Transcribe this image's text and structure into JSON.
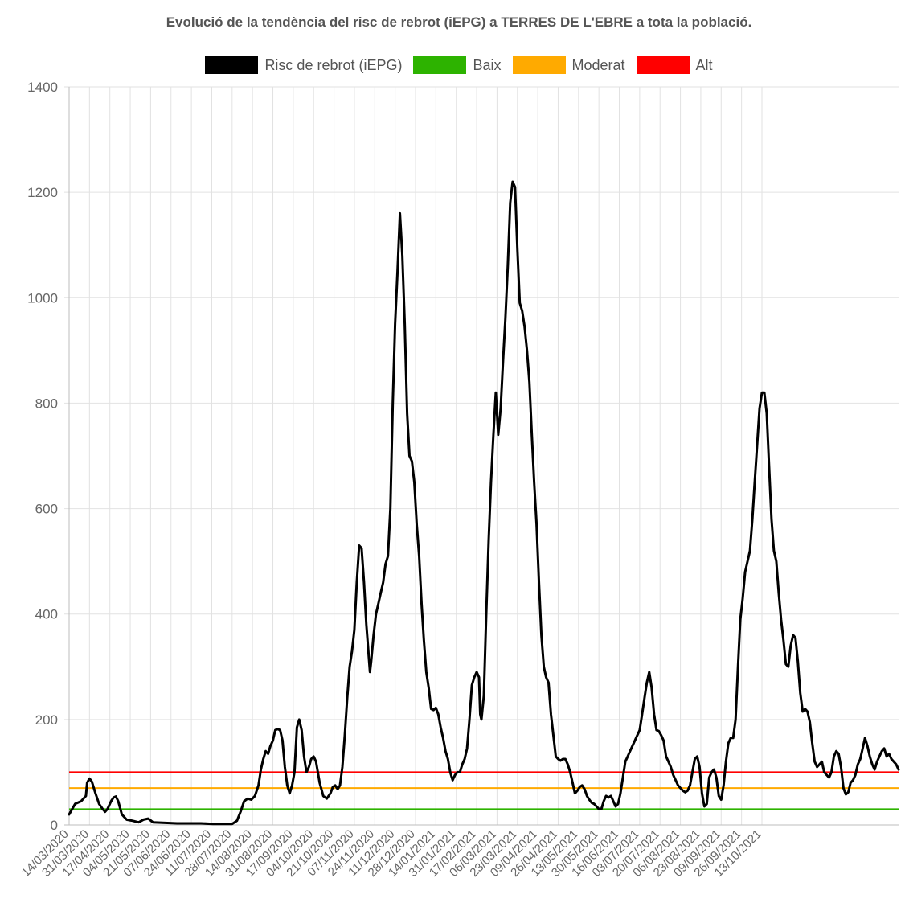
{
  "chart_data": {
    "type": "line",
    "title": "Evolució de la tendència del risc de rebrot (iEPG) a TERRES DE L'EBRE a tota la població.",
    "ylim": [
      0,
      1400
    ],
    "yticks": [
      0,
      200,
      400,
      600,
      800,
      1000,
      1200,
      1400
    ],
    "x_tick_labels": [
      "14/03/2020",
      "31/03/2020",
      "17/04/2020",
      "04/05/2020",
      "21/05/2020",
      "07/06/2020",
      "24/06/2020",
      "11/07/2020",
      "28/07/2020",
      "14/08/2020",
      "31/08/2020",
      "17/09/2020",
      "04/10/2020",
      "21/10/2020",
      "07/11/2020",
      "24/11/2020",
      "11/12/2020",
      "28/12/2020",
      "14/01/2021",
      "31/01/2021",
      "17/02/2021",
      "06/03/2021",
      "23/03/2021",
      "09/04/2021",
      "26/04/2021",
      "13/05/2021",
      "30/05/2021",
      "16/06/2021",
      "03/07/2021",
      "20/07/2021",
      "06/08/2021",
      "23/08/2021",
      "09/09/2021",
      "26/09/2021",
      "13/10/2021"
    ],
    "grid": true,
    "legend_position": "top",
    "series": [
      {
        "name": "Risc de rebrot (iEPG)",
        "color": "#000000",
        "points": [
          [
            0,
            20
          ],
          [
            5,
            40
          ],
          [
            10,
            45
          ],
          [
            14,
            55
          ],
          [
            15,
            80
          ],
          [
            17,
            88
          ],
          [
            19,
            82
          ],
          [
            22,
            60
          ],
          [
            25,
            40
          ],
          [
            28,
            30
          ],
          [
            30,
            25
          ],
          [
            32,
            30
          ],
          [
            35,
            45
          ],
          [
            37,
            52
          ],
          [
            39,
            54
          ],
          [
            41,
            45
          ],
          [
            44,
            20
          ],
          [
            48,
            10
          ],
          [
            53,
            8
          ],
          [
            58,
            5
          ],
          [
            62,
            10
          ],
          [
            66,
            12
          ],
          [
            70,
            5
          ],
          [
            80,
            4
          ],
          [
            90,
            3
          ],
          [
            110,
            3
          ],
          [
            120,
            2
          ],
          [
            130,
            2
          ],
          [
            136,
            2
          ],
          [
            140,
            8
          ],
          [
            143,
            25
          ],
          [
            146,
            45
          ],
          [
            149,
            50
          ],
          [
            152,
            48
          ],
          [
            155,
            55
          ],
          [
            158,
            75
          ],
          [
            160,
            105
          ],
          [
            162,
            125
          ],
          [
            164,
            140
          ],
          [
            166,
            135
          ],
          [
            168,
            150
          ],
          [
            170,
            160
          ],
          [
            172,
            180
          ],
          [
            174,
            182
          ],
          [
            176,
            180
          ],
          [
            178,
            160
          ],
          [
            180,
            110
          ],
          [
            182,
            75
          ],
          [
            184,
            60
          ],
          [
            186,
            75
          ],
          [
            188,
            100
          ],
          [
            190,
            185
          ],
          [
            192,
            200
          ],
          [
            194,
            180
          ],
          [
            196,
            130
          ],
          [
            198,
            100
          ],
          [
            200,
            110
          ],
          [
            202,
            125
          ],
          [
            204,
            130
          ],
          [
            206,
            120
          ],
          [
            209,
            80
          ],
          [
            212,
            55
          ],
          [
            215,
            50
          ],
          [
            218,
            60
          ],
          [
            220,
            72
          ],
          [
            222,
            75
          ],
          [
            224,
            68
          ],
          [
            226,
            75
          ],
          [
            228,
            110
          ],
          [
            230,
            170
          ],
          [
            232,
            240
          ],
          [
            234,
            300
          ],
          [
            236,
            330
          ],
          [
            238,
            370
          ],
          [
            240,
            460
          ],
          [
            242,
            530
          ],
          [
            244,
            525
          ],
          [
            246,
            460
          ],
          [
            248,
            380
          ],
          [
            250,
            320
          ],
          [
            251,
            290
          ],
          [
            252,
            310
          ],
          [
            254,
            360
          ],
          [
            256,
            400
          ],
          [
            258,
            420
          ],
          [
            260,
            440
          ],
          [
            262,
            460
          ],
          [
            264,
            495
          ],
          [
            266,
            510
          ],
          [
            268,
            600
          ],
          [
            270,
            800
          ],
          [
            272,
            950
          ],
          [
            274,
            1050
          ],
          [
            276,
            1160
          ],
          [
            278,
            1080
          ],
          [
            280,
            950
          ],
          [
            282,
            780
          ],
          [
            284,
            700
          ],
          [
            286,
            690
          ],
          [
            288,
            650
          ],
          [
            290,
            570
          ],
          [
            292,
            510
          ],
          [
            294,
            420
          ],
          [
            296,
            350
          ],
          [
            298,
            290
          ],
          [
            300,
            260
          ],
          [
            302,
            220
          ],
          [
            304,
            218
          ],
          [
            306,
            222
          ],
          [
            308,
            210
          ],
          [
            310,
            185
          ],
          [
            312,
            165
          ],
          [
            314,
            140
          ],
          [
            316,
            125
          ],
          [
            318,
            100
          ],
          [
            320,
            85
          ],
          [
            322,
            95
          ],
          [
            324,
            100
          ],
          [
            326,
            100
          ],
          [
            328,
            115
          ],
          [
            330,
            125
          ],
          [
            332,
            145
          ],
          [
            334,
            200
          ],
          [
            336,
            265
          ],
          [
            338,
            280
          ],
          [
            340,
            290
          ],
          [
            342,
            280
          ],
          [
            343,
            210
          ],
          [
            344,
            200
          ],
          [
            346,
            245
          ],
          [
            348,
            400
          ],
          [
            350,
            540
          ],
          [
            352,
            650
          ],
          [
            354,
            740
          ],
          [
            356,
            820
          ],
          [
            357,
            780
          ],
          [
            358,
            740
          ],
          [
            360,
            790
          ],
          [
            362,
            880
          ],
          [
            364,
            960
          ],
          [
            366,
            1060
          ],
          [
            368,
            1180
          ],
          [
            370,
            1220
          ],
          [
            372,
            1210
          ],
          [
            374,
            1090
          ],
          [
            376,
            990
          ],
          [
            378,
            975
          ],
          [
            380,
            945
          ],
          [
            382,
            900
          ],
          [
            384,
            840
          ],
          [
            386,
            740
          ],
          [
            388,
            650
          ],
          [
            390,
            570
          ],
          [
            392,
            460
          ],
          [
            394,
            360
          ],
          [
            396,
            300
          ],
          [
            398,
            280
          ],
          [
            400,
            270
          ],
          [
            402,
            210
          ],
          [
            404,
            170
          ],
          [
            406,
            130
          ],
          [
            408,
            125
          ],
          [
            410,
            122
          ],
          [
            412,
            125
          ],
          [
            414,
            125
          ],
          [
            416,
            115
          ],
          [
            418,
            100
          ],
          [
            420,
            80
          ],
          [
            422,
            60
          ],
          [
            424,
            65
          ],
          [
            426,
            72
          ],
          [
            428,
            75
          ],
          [
            430,
            68
          ],
          [
            432,
            55
          ],
          [
            434,
            48
          ],
          [
            436,
            42
          ],
          [
            438,
            40
          ],
          [
            440,
            35
          ],
          [
            442,
            30
          ],
          [
            444,
            30
          ],
          [
            446,
            45
          ],
          [
            448,
            55
          ],
          [
            450,
            52
          ],
          [
            452,
            55
          ],
          [
            454,
            45
          ],
          [
            456,
            35
          ],
          [
            458,
            40
          ],
          [
            460,
            60
          ],
          [
            462,
            90
          ],
          [
            464,
            120
          ],
          [
            466,
            130
          ],
          [
            468,
            140
          ],
          [
            470,
            150
          ],
          [
            472,
            160
          ],
          [
            474,
            170
          ],
          [
            476,
            180
          ],
          [
            478,
            210
          ],
          [
            480,
            240
          ],
          [
            482,
            270
          ],
          [
            484,
            290
          ],
          [
            486,
            260
          ],
          [
            488,
            210
          ],
          [
            490,
            180
          ],
          [
            492,
            178
          ],
          [
            494,
            170
          ],
          [
            496,
            160
          ],
          [
            498,
            130
          ],
          [
            500,
            120
          ],
          [
            502,
            110
          ],
          [
            504,
            95
          ],
          [
            506,
            85
          ],
          [
            508,
            75
          ],
          [
            510,
            70
          ],
          [
            512,
            65
          ],
          [
            514,
            62
          ],
          [
            516,
            65
          ],
          [
            518,
            75
          ],
          [
            520,
            100
          ],
          [
            522,
            125
          ],
          [
            524,
            130
          ],
          [
            526,
            110
          ],
          [
            528,
            60
          ],
          [
            530,
            35
          ],
          [
            532,
            40
          ],
          [
            534,
            90
          ],
          [
            536,
            100
          ],
          [
            538,
            105
          ],
          [
            540,
            90
          ],
          [
            542,
            55
          ],
          [
            544,
            48
          ],
          [
            546,
            75
          ],
          [
            548,
            120
          ],
          [
            550,
            155
          ],
          [
            552,
            165
          ],
          [
            554,
            165
          ],
          [
            556,
            200
          ],
          [
            558,
            300
          ],
          [
            560,
            390
          ],
          [
            562,
            430
          ],
          [
            564,
            480
          ],
          [
            566,
            500
          ],
          [
            568,
            520
          ],
          [
            570,
            580
          ],
          [
            572,
            650
          ],
          [
            574,
            720
          ],
          [
            576,
            790
          ],
          [
            578,
            820
          ],
          [
            580,
            820
          ],
          [
            582,
            780
          ],
          [
            584,
            680
          ],
          [
            586,
            580
          ],
          [
            588,
            520
          ],
          [
            590,
            500
          ],
          [
            592,
            440
          ],
          [
            594,
            390
          ],
          [
            596,
            350
          ],
          [
            598,
            305
          ],
          [
            600,
            300
          ],
          [
            602,
            340
          ],
          [
            604,
            360
          ],
          [
            606,
            355
          ],
          [
            608,
            310
          ],
          [
            610,
            250
          ],
          [
            612,
            215
          ],
          [
            614,
            220
          ],
          [
            616,
            215
          ],
          [
            618,
            195
          ],
          [
            620,
            155
          ],
          [
            622,
            120
          ],
          [
            624,
            110
          ],
          [
            626,
            115
          ],
          [
            628,
            120
          ],
          [
            630,
            100
          ],
          [
            632,
            95
          ],
          [
            634,
            90
          ],
          [
            636,
            100
          ],
          [
            638,
            130
          ],
          [
            640,
            140
          ],
          [
            642,
            135
          ],
          [
            644,
            110
          ],
          [
            646,
            70
          ],
          [
            648,
            58
          ],
          [
            650,
            62
          ],
          [
            652,
            80
          ],
          [
            654,
            85
          ],
          [
            656,
            95
          ],
          [
            658,
            115
          ],
          [
            660,
            125
          ],
          [
            662,
            145
          ],
          [
            664,
            165
          ],
          [
            666,
            150
          ],
          [
            668,
            130
          ],
          [
            670,
            115
          ],
          [
            672,
            105
          ],
          [
            674,
            120
          ],
          [
            676,
            130
          ],
          [
            678,
            140
          ],
          [
            680,
            145
          ],
          [
            682,
            130
          ],
          [
            684,
            135
          ],
          [
            686,
            125
          ],
          [
            688,
            120
          ],
          [
            690,
            115
          ],
          [
            692,
            105
          ]
        ]
      },
      {
        "name": "Baix",
        "color": "#2db300",
        "value": 30
      },
      {
        "name": "Moderat",
        "color": "#ffaa00",
        "value": 70
      },
      {
        "name": "Alt",
        "color": "#ff0000",
        "value": 100
      }
    ]
  }
}
